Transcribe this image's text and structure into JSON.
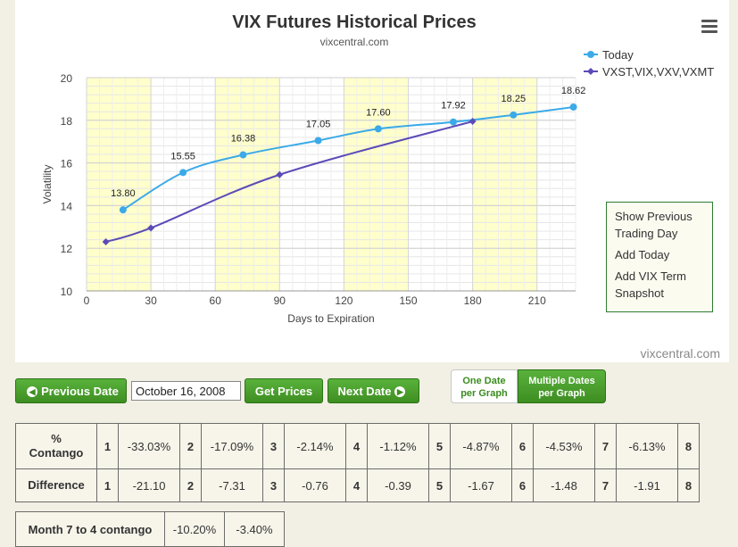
{
  "chart_data": {
    "type": "line",
    "title": "VIX Futures Historical Prices",
    "subtitle": "vixcentral.com",
    "credit": "vixcentral.com",
    "xlabel": "Days to Expiration",
    "ylabel": "Volatility",
    "xlim": [
      0,
      228
    ],
    "ylim": [
      10,
      20
    ],
    "x_ticks": [
      "0",
      "30",
      "60",
      "90",
      "120",
      "150",
      "180",
      "210"
    ],
    "y_ticks": [
      "10",
      "12",
      "14",
      "16",
      "18",
      "20"
    ],
    "bands": [
      [
        0,
        30
      ],
      [
        60,
        90
      ],
      [
        120,
        150
      ],
      [
        180,
        210
      ]
    ],
    "band_color": "#ffffcc",
    "grid": true,
    "legend_position": "top-right",
    "series": [
      {
        "name": "Today",
        "color": "#3baae8",
        "marker": "circle",
        "x": [
          17,
          45,
          73,
          108,
          136,
          171,
          199,
          227
        ],
        "y": [
          13.8,
          15.55,
          16.38,
          17.05,
          17.6,
          17.92,
          18.25,
          18.62
        ],
        "labels": [
          "13.80",
          "15.55",
          "16.38",
          "17.05",
          "17.60",
          "17.92",
          "18.25",
          "18.62"
        ]
      },
      {
        "name": "VXST,VIX,VXV,VXMT",
        "color": "#5b4bb7",
        "marker": "diamond",
        "x": [
          9,
          30,
          90,
          180
        ],
        "y": [
          12.3,
          12.95,
          15.45,
          17.95
        ]
      }
    ]
  },
  "menu_icon": "hamburger-icon",
  "context_menu": {
    "items": [
      "Show Previous Trading Day",
      "Add Today",
      "Add VIX Term Snapshot"
    ]
  },
  "controls": {
    "previous_label": "Previous Date",
    "previous_icon": "arrow-left-circle-icon",
    "date_value": "October 16, 2008",
    "get_prices_label": "Get Prices",
    "next_label": "Next Date",
    "next_icon": "arrow-right-circle-icon",
    "toggle": {
      "one_date": [
        "One Date",
        "per Graph"
      ],
      "multiple_dates": [
        "Multiple Dates",
        "per Graph"
      ]
    }
  },
  "table": {
    "rows": [
      {
        "label": [
          "%",
          "Contango"
        ],
        "cells": [
          [
            "1",
            "-33.03%"
          ],
          [
            "2",
            "-17.09%"
          ],
          [
            "3",
            "-2.14%"
          ],
          [
            "4",
            "-1.12%"
          ],
          [
            "5",
            "-4.87%"
          ],
          [
            "6",
            "-4.53%"
          ],
          [
            "7",
            "-6.13%"
          ],
          [
            "8",
            ""
          ]
        ]
      },
      {
        "label": [
          "Difference"
        ],
        "cells": [
          [
            "1",
            "-21.10"
          ],
          [
            "2",
            "-7.31"
          ],
          [
            "3",
            "-0.76"
          ],
          [
            "4",
            "-0.39"
          ],
          [
            "5",
            "-1.67"
          ],
          [
            "6",
            "-1.48"
          ],
          [
            "7",
            "-1.91"
          ],
          [
            "8",
            ""
          ]
        ]
      }
    ]
  },
  "month7_4": {
    "label": "Month 7 to 4 contango",
    "values": [
      "-10.20%",
      "-3.40%"
    ]
  }
}
